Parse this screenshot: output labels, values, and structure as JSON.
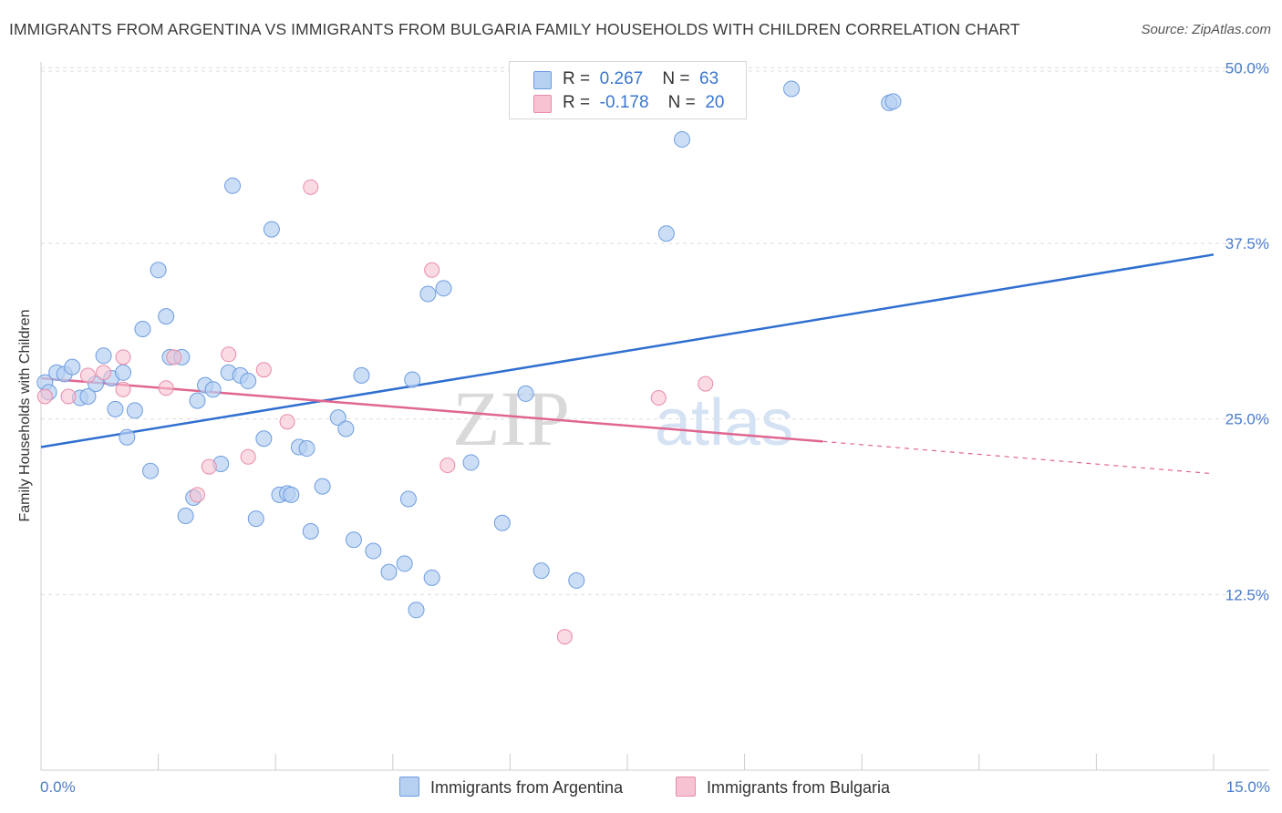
{
  "title": "IMMIGRANTS FROM ARGENTINA VS IMMIGRANTS FROM BULGARIA FAMILY HOUSEHOLDS WITH CHILDREN CORRELATION CHART",
  "source": "Source: ZipAtlas.com",
  "watermark": {
    "zip": "ZIP",
    "atlas": "atlas"
  },
  "legend": {
    "argentina": {
      "r_label": "R =",
      "r_value": "0.267",
      "n_label": "N =",
      "n_value": "63"
    },
    "bulgaria": {
      "r_label": "R =",
      "r_value": "-0.178",
      "n_label": "N =",
      "n_value": "20"
    }
  },
  "colors": {
    "argentina_fill": "#b6d0f2",
    "argentina_stroke": "#6d9de0",
    "argentina_line": "#2f6fd0",
    "bulgaria_fill": "#f7c3d2",
    "bulgaria_stroke": "#e98aa8",
    "bulgaria_line": "#e0668f",
    "tick_text": "#4a7cc9",
    "grid": "#dddddd"
  },
  "chart_data": {
    "type": "scatter",
    "title": "IMMIGRANTS FROM ARGENTINA VS IMMIGRANTS FROM BULGARIA FAMILY HOUSEHOLDS WITH CHILDREN CORRELATION CHART",
    "xlabel": "",
    "ylabel": "Family Households with Children",
    "xlim": [
      0,
      15
    ],
    "ylim": [
      0,
      50.8
    ],
    "x_tick_labels": [
      "0.0%",
      "15.0%"
    ],
    "y_ticks": [
      12.5,
      25.0,
      37.5,
      50.0
    ],
    "y_tick_labels": [
      "12.5%",
      "25.0%",
      "37.5%",
      "50.0%"
    ],
    "grid": true,
    "legend_position": "top-center",
    "series": [
      {
        "name": "Immigrants from Argentina",
        "r": 0.267,
        "n": 63,
        "trend": {
          "x": [
            0,
            15
          ],
          "y": [
            23.0,
            36.7
          ]
        },
        "points": [
          [
            0.05,
            27.6
          ],
          [
            0.1,
            26.9
          ],
          [
            0.2,
            28.3
          ],
          [
            0.3,
            28.2
          ],
          [
            0.4,
            28.7
          ],
          [
            0.5,
            26.5
          ],
          [
            0.6,
            26.6
          ],
          [
            0.7,
            27.5
          ],
          [
            0.8,
            29.5
          ],
          [
            0.9,
            27.9
          ],
          [
            0.95,
            25.7
          ],
          [
            1.05,
            28.3
          ],
          [
            1.1,
            23.7
          ],
          [
            1.2,
            25.6
          ],
          [
            1.3,
            31.4
          ],
          [
            1.4,
            21.3
          ],
          [
            1.5,
            35.6
          ],
          [
            1.6,
            32.3
          ],
          [
            1.65,
            29.4
          ],
          [
            1.8,
            29.4
          ],
          [
            1.85,
            18.1
          ],
          [
            1.95,
            19.4
          ],
          [
            2.0,
            26.3
          ],
          [
            2.1,
            27.4
          ],
          [
            2.2,
            27.1
          ],
          [
            2.3,
            21.8
          ],
          [
            2.4,
            28.3
          ],
          [
            2.45,
            41.6
          ],
          [
            2.55,
            28.1
          ],
          [
            2.65,
            27.7
          ],
          [
            2.75,
            17.9
          ],
          [
            2.85,
            23.6
          ],
          [
            2.95,
            38.5
          ],
          [
            3.05,
            19.6
          ],
          [
            3.15,
            19.7
          ],
          [
            3.2,
            19.6
          ],
          [
            3.3,
            23.0
          ],
          [
            3.4,
            22.9
          ],
          [
            3.45,
            17.0
          ],
          [
            3.6,
            20.2
          ],
          [
            3.8,
            25.1
          ],
          [
            3.9,
            24.3
          ],
          [
            4.0,
            16.4
          ],
          [
            4.1,
            28.1
          ],
          [
            4.25,
            15.6
          ],
          [
            4.45,
            14.1
          ],
          [
            4.65,
            14.7
          ],
          [
            4.7,
            19.3
          ],
          [
            4.75,
            27.8
          ],
          [
            4.8,
            11.4
          ],
          [
            4.95,
            33.9
          ],
          [
            5.0,
            13.7
          ],
          [
            5.15,
            34.3
          ],
          [
            5.5,
            21.9
          ],
          [
            5.9,
            17.6
          ],
          [
            6.2,
            26.8
          ],
          [
            6.4,
            14.2
          ],
          [
            6.85,
            13.5
          ],
          [
            8.0,
            38.2
          ],
          [
            8.2,
            44.9
          ],
          [
            9.6,
            48.5
          ],
          [
            10.85,
            47.5
          ],
          [
            10.9,
            47.6
          ]
        ]
      },
      {
        "name": "Immigrants from Bulgaria",
        "r": -0.178,
        "n": 20,
        "trend": {
          "x": [
            0,
            10.0
          ],
          "y": [
            27.9,
            23.4
          ]
        },
        "trend_extension": {
          "x": [
            10.0,
            15
          ],
          "y": [
            23.4,
            21.1
          ]
        },
        "points": [
          [
            0.05,
            26.6
          ],
          [
            0.35,
            26.6
          ],
          [
            0.6,
            28.1
          ],
          [
            0.8,
            28.3
          ],
          [
            1.05,
            27.1
          ],
          [
            1.05,
            29.4
          ],
          [
            1.6,
            27.2
          ],
          [
            1.7,
            29.4
          ],
          [
            2.0,
            19.6
          ],
          [
            2.15,
            21.6
          ],
          [
            2.4,
            29.6
          ],
          [
            2.65,
            22.3
          ],
          [
            2.85,
            28.5
          ],
          [
            3.15,
            24.8
          ],
          [
            3.45,
            41.5
          ],
          [
            5.0,
            35.6
          ],
          [
            5.2,
            21.7
          ],
          [
            6.7,
            9.5
          ],
          [
            7.9,
            26.5
          ],
          [
            8.5,
            27.5
          ]
        ]
      }
    ]
  },
  "bottom_legend": {
    "argentina": "Immigrants from Argentina",
    "bulgaria": "Immigrants from Bulgaria"
  }
}
